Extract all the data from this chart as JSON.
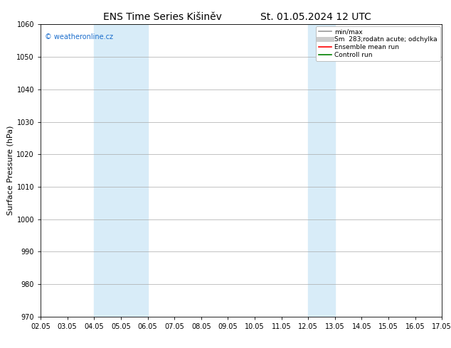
{
  "title_left": "ENS Time Series Kišiněv",
  "title_right": "St. 01.05.2024 12 UTC",
  "ylabel": "Surface Pressure (hPa)",
  "ylim": [
    970,
    1060
  ],
  "yticks": [
    970,
    980,
    990,
    1000,
    1010,
    1020,
    1030,
    1040,
    1050,
    1060
  ],
  "xtick_labels": [
    "02.05",
    "03.05",
    "04.05",
    "05.05",
    "06.05",
    "07.05",
    "08.05",
    "09.05",
    "10.05",
    "11.05",
    "12.05",
    "13.05",
    "14.05",
    "15.05",
    "16.05",
    "17.05"
  ],
  "shaded_regions": [
    {
      "xmin": 2,
      "xmax": 4,
      "color": "#d8ecf8"
    },
    {
      "xmin": 10,
      "xmax": 11,
      "color": "#d8ecf8"
    }
  ],
  "watermark": "© weatheronline.cz",
  "watermark_color": "#1a6dcc",
  "legend_entries": [
    {
      "label": "min/max",
      "color": "#999999",
      "lw": 1.2,
      "style": "-"
    },
    {
      "label": "Sm  283;rodatn acute; odchylka",
      "color": "#cccccc",
      "lw": 5,
      "style": "-"
    },
    {
      "label": "Ensemble mean run",
      "color": "#ff0000",
      "lw": 1.2,
      "style": "-"
    },
    {
      "label": "Controll run",
      "color": "#008000",
      "lw": 1.2,
      "style": "-"
    }
  ],
  "background_color": "#ffffff",
  "grid_color": "#aaaaaa",
  "title_fontsize": 10,
  "ylabel_fontsize": 8,
  "tick_fontsize": 7,
  "legend_fontsize": 6.5
}
